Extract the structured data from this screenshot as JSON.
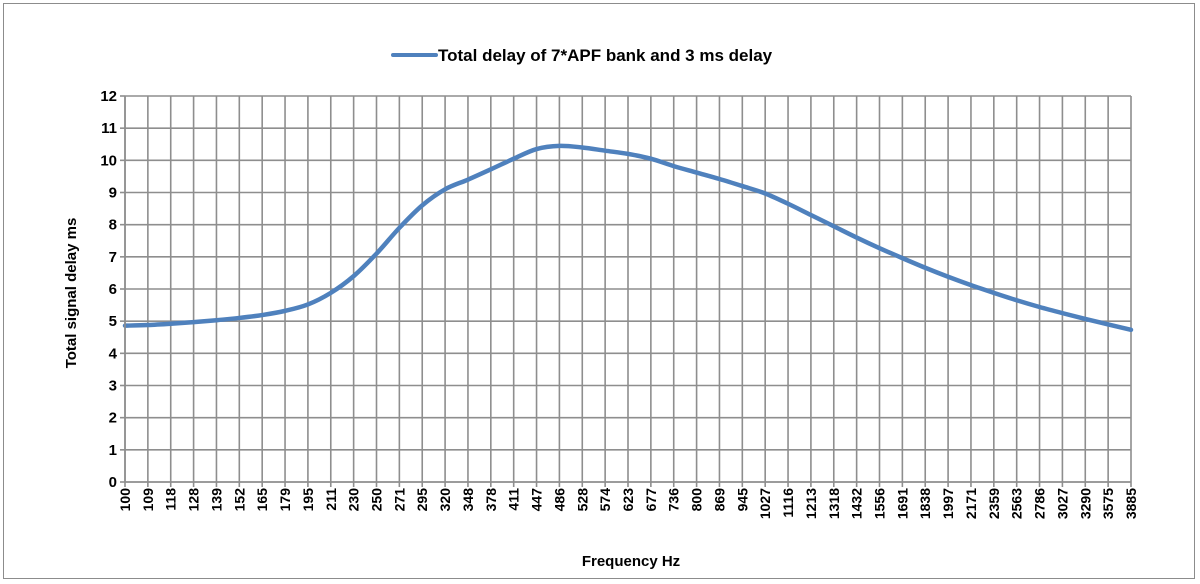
{
  "chart_data": {
    "type": "line",
    "title": "",
    "xlabel": "Frequency Hz",
    "ylabel": "Total signal delay ms",
    "ylim": [
      0,
      12
    ],
    "y_ticks": [
      "0",
      "1",
      "2",
      "3",
      "4",
      "5",
      "6",
      "7",
      "8",
      "9",
      "10",
      "11",
      "12"
    ],
    "grid": true,
    "legend_position": "top",
    "categories": [
      "100",
      "109",
      "118",
      "128",
      "139",
      "152",
      "165",
      "179",
      "195",
      "211",
      "230",
      "250",
      "271",
      "295",
      "320",
      "348",
      "378",
      "411",
      "447",
      "486",
      "528",
      "574",
      "623",
      "677",
      "736",
      "800",
      "869",
      "945",
      "1027",
      "1116",
      "1213",
      "1318",
      "1432",
      "1556",
      "1691",
      "1838",
      "1997",
      "2171",
      "2359",
      "2563",
      "2786",
      "3027",
      "3290",
      "3575",
      "3885"
    ],
    "series": [
      {
        "name": "Total delay of 7*APF bank and 3 ms delay",
        "color": "#4f81bd",
        "values": [
          4.86,
          4.88,
          4.92,
          4.97,
          5.03,
          5.1,
          5.19,
          5.32,
          5.52,
          5.88,
          6.4,
          7.1,
          7.9,
          8.6,
          9.1,
          9.4,
          9.72,
          10.05,
          10.35,
          10.45,
          10.4,
          10.3,
          10.2,
          10.05,
          9.82,
          9.62,
          9.42,
          9.2,
          8.97,
          8.65,
          8.3,
          7.95,
          7.6,
          7.27,
          6.96,
          6.66,
          6.38,
          6.12,
          5.88,
          5.65,
          5.44,
          5.25,
          5.07,
          4.9,
          4.73
        ]
      }
    ]
  }
}
